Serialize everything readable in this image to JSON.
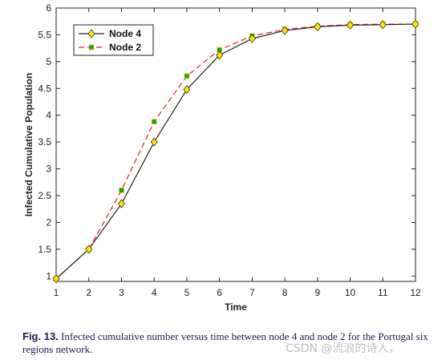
{
  "chart_data": {
    "type": "line",
    "xlabel": "Time",
    "ylabel": "Infected Cumulative Population",
    "xlim": [
      1,
      12
    ],
    "ylim": [
      0.9,
      6
    ],
    "x_ticks": [
      "1",
      "2",
      "3",
      "4",
      "5",
      "6",
      "7",
      "8",
      "9",
      "10",
      "11",
      "12"
    ],
    "y_ticks": [
      "1",
      "1.5",
      "2",
      "2.5",
      "3",
      "3.5",
      "4",
      "4.5",
      "5",
      "5.5",
      "6"
    ],
    "grid": false,
    "legend_position": "top-left",
    "x": [
      1,
      2,
      3,
      4,
      5,
      6,
      7,
      8,
      9,
      10,
      11,
      12
    ],
    "series": [
      {
        "name": "Node 4",
        "values": [
          0.95,
          1.5,
          2.35,
          3.5,
          4.48,
          5.12,
          5.43,
          5.58,
          5.65,
          5.68,
          5.69,
          5.7
        ],
        "color": "#222222",
        "marker": "diamond",
        "marker_color": "#ffe600",
        "dash": "solid"
      },
      {
        "name": "Node 2",
        "values": [
          0.95,
          1.5,
          2.6,
          3.88,
          4.73,
          5.22,
          5.48,
          5.6,
          5.66,
          5.69,
          5.7,
          5.7
        ],
        "color": "#e0202a",
        "marker": "square",
        "marker_color": "#1aa01a",
        "dash": "dashed"
      }
    ]
  },
  "caption": {
    "label": "Fig. 13.",
    "text": " Infected cumulative number versus time between node 4 and node 2 for the Portugal six regions network."
  },
  "watermark": "CSDN @流浪的诗人，"
}
